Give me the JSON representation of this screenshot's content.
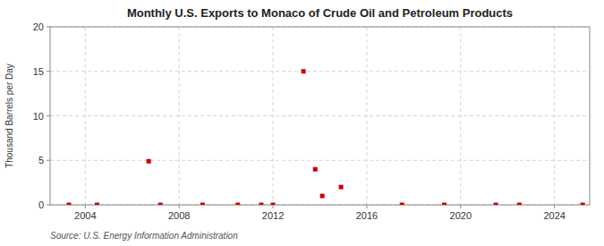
{
  "chart_data": {
    "type": "scatter",
    "title": "Monthly U.S. Exports to Monaco of Crude Oil and Petroleum Products",
    "ylabel": "Thousand Barrels per Day",
    "source": "Source: U.S. Energy Information Administration",
    "color": "#cc0000",
    "marker": "square",
    "grid": true,
    "xlim": [
      2002.5,
      2025.5
    ],
    "ylim": [
      0,
      20
    ],
    "xticks": [
      2004,
      2008,
      2012,
      2016,
      2020,
      2024
    ],
    "yticks": [
      0,
      5,
      10,
      15,
      20
    ],
    "x": [
      2003.3,
      2004.5,
      2006.7,
      2007.2,
      2009.0,
      2010.5,
      2011.5,
      2012.0,
      2013.3,
      2013.8,
      2014.1,
      2014.9,
      2017.5,
      2019.3,
      2021.5,
      2022.5,
      2025.2
    ],
    "values": [
      0.0,
      0.0,
      4.9,
      0.0,
      0.0,
      0.0,
      0.0,
      0.0,
      15.0,
      4.0,
      1.0,
      2.0,
      0.0,
      0.0,
      0.0,
      0.0,
      0.0
    ]
  }
}
